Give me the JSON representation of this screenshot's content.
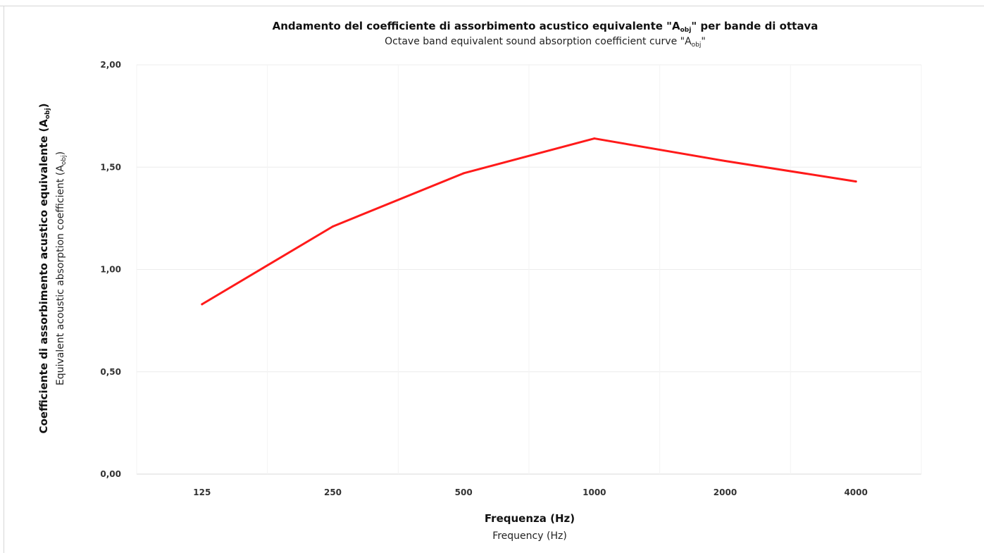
{
  "chart_data": {
    "type": "line",
    "title": {
      "before": "Andamento del coefficiente di assorbimento acustico equivalente \"A",
      "sub": "obj",
      "after": "\" per bande di ottava"
    },
    "subtitle": {
      "before": "Octave band equivalent sound absorption coefficient curve \"A",
      "sub": "obj",
      "after": "\""
    },
    "xlabel": "Frequenza (Hz)",
    "xlabel_secondary": "Frequency (Hz)",
    "ylabel": {
      "before": "Coefficiente di assorbimento acustico equivalente (A",
      "sub": "obj",
      "after": ")"
    },
    "ylabel_secondary": {
      "before": "Equivalent acoustic absorption coefficient (A",
      "sub": "obj",
      "after": ")"
    },
    "categories": [
      "125",
      "250",
      "500",
      "1000",
      "2000",
      "4000"
    ],
    "series": [
      {
        "values": [
          0.83,
          1.21,
          1.47,
          1.64,
          1.53,
          1.43
        ],
        "color": "#ff1a1a"
      }
    ],
    "ylim": [
      0,
      2
    ],
    "yticks": [
      0,
      0.5,
      1,
      1.5,
      2
    ],
    "ytick_labels": [
      "0,00",
      "0,50",
      "1,00",
      "1,50",
      "2,00"
    ],
    "grid": true
  }
}
